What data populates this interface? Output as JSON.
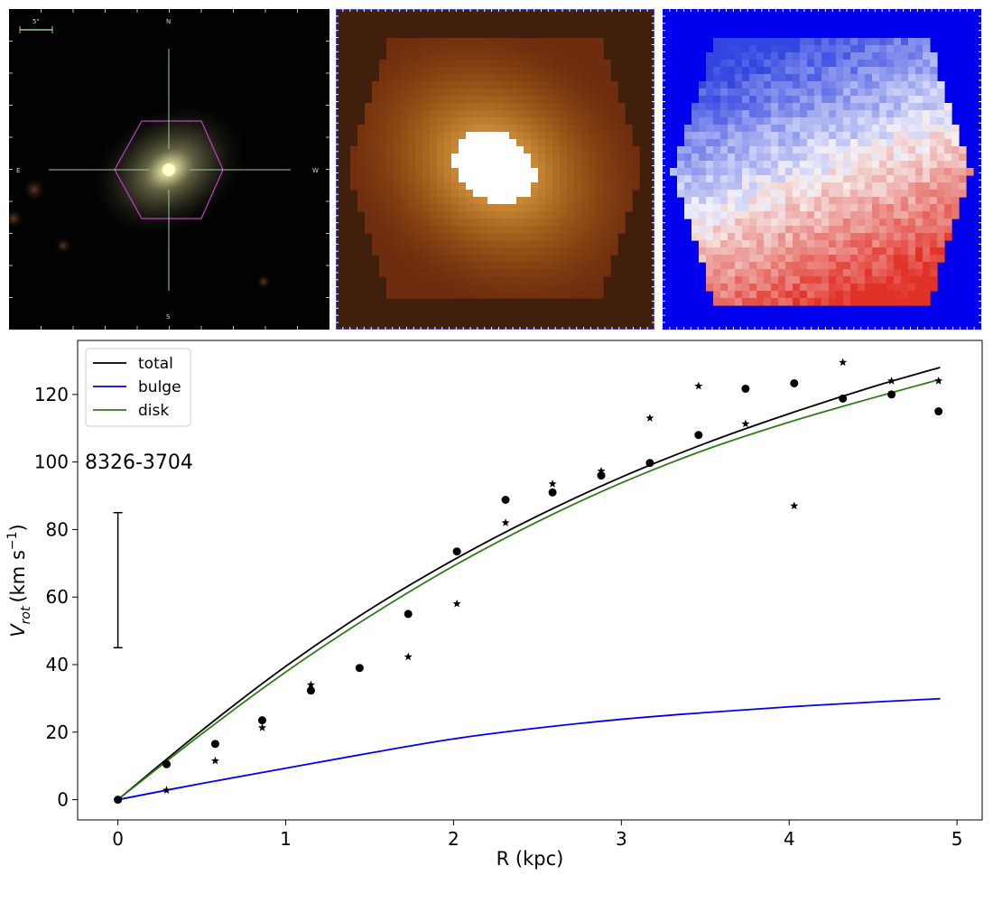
{
  "optical": {
    "scalebar_label": "5\"",
    "compass": {
      "north": "N",
      "south": "S",
      "east": "E",
      "west": "W"
    }
  },
  "chart_data": {
    "type": "line",
    "annotation": "8326-3704",
    "xlabel": "R (kpc)",
    "ylabel": "V",
    "ylabel_sub": "rot",
    "ylabel_units_prefix": "(km s",
    "ylabel_units_sup": "−1",
    "ylabel_units_suffix": ")",
    "xlim": [
      -0.24,
      5.15
    ],
    "ylim": [
      -6,
      136
    ],
    "xticks": [
      0,
      1,
      2,
      3,
      4,
      5
    ],
    "yticks": [
      0,
      20,
      40,
      60,
      80,
      100,
      120
    ],
    "grid": false,
    "legend_position": "top-left",
    "series": [
      {
        "name": "total",
        "color": "#000000",
        "style": "line",
        "x": [
          0,
          0.5,
          1,
          1.5,
          2,
          2.5,
          3,
          3.5,
          4,
          4.5,
          4.9
        ],
        "y": [
          0,
          20.5,
          39.5,
          56.3,
          71.0,
          84.0,
          95.5,
          105.5,
          114.3,
          122.3,
          128.0
        ]
      },
      {
        "name": "bulge",
        "color": "#0000ee",
        "style": "line",
        "x": [
          0,
          0.5,
          1,
          1.5,
          2,
          2.5,
          3,
          3.5,
          4,
          4.5,
          4.9
        ],
        "y": [
          0,
          4.8,
          9.3,
          13.8,
          18.0,
          21.2,
          23.8,
          25.8,
          27.5,
          28.9,
          29.9
        ]
      },
      {
        "name": "disk",
        "color": "#2e7d1a",
        "style": "line",
        "x": [
          0,
          0.5,
          1,
          1.5,
          2,
          2.5,
          3,
          3.5,
          4,
          4.5,
          4.9
        ],
        "y": [
          0,
          19.5,
          37.8,
          54.3,
          69.2,
          82.3,
          93.8,
          103.6,
          111.8,
          119.0,
          124.5
        ]
      }
    ],
    "points_circle": {
      "x": [
        0,
        0.29,
        0.58,
        0.86,
        1.15,
        1.44,
        1.73,
        2.02,
        2.31,
        2.59,
        2.88,
        3.17,
        3.46,
        3.74,
        4.03,
        4.32,
        4.61,
        4.89
      ],
      "y": [
        0,
        10.5,
        16.5,
        23.5,
        32.3,
        39.0,
        55.0,
        73.5,
        88.8,
        91.0,
        96.0,
        99.7,
        108.0,
        121.7,
        123.3,
        118.8,
        120.0,
        115.0
      ]
    },
    "points_star": {
      "x": [
        0,
        0.29,
        0.58,
        0.86,
        1.15,
        1.73,
        2.02,
        2.31,
        2.59,
        2.88,
        3.17,
        3.46,
        3.74,
        4.03,
        4.32,
        4.61,
        4.89
      ],
      "y": [
        0,
        2.8,
        11.5,
        21.3,
        34.0,
        42.3,
        58.0,
        82.0,
        93.5,
        97.3,
        113.0,
        122.5,
        111.3,
        87.0,
        129.5,
        124.0,
        124.0
      ]
    },
    "errorbar": {
      "x": 0,
      "y_low": 45,
      "y_high": 85
    }
  }
}
